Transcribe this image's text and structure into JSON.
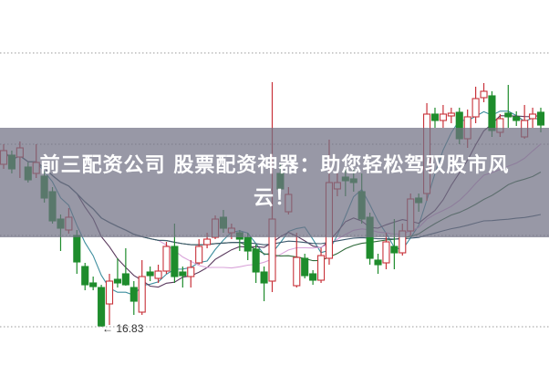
{
  "chart_data": {
    "type": "candlestick",
    "title": "",
    "min_label": "16.83",
    "grid": true,
    "ylim": [
      16.83,
      19.83
    ],
    "colors": {
      "up": "#c8323a",
      "down": "#1e8c2c",
      "ma": [
        "#3f8f9f",
        "#5a3a5e",
        "#d9a3d9",
        "#2f6a3a",
        "#3f5a6e"
      ]
    },
    "moving_averages": [
      5,
      10,
      20,
      30,
      60
    ],
    "candles_ohlc": [
      [
        18.61,
        18.83,
        18.56,
        18.76
      ],
      [
        18.71,
        18.76,
        18.51,
        18.56
      ],
      [
        18.69,
        18.86,
        18.46,
        18.79
      ],
      [
        18.58,
        18.63,
        18.41,
        18.44
      ],
      [
        18.51,
        18.83,
        18.46,
        18.63
      ],
      [
        18.48,
        18.53,
        18.19,
        18.24
      ],
      [
        18.31,
        18.36,
        17.96,
        17.99
      ],
      [
        18.01,
        18.06,
        17.66,
        17.91
      ],
      [
        17.89,
        18.13,
        17.85,
        18.03
      ],
      [
        17.83,
        17.89,
        17.41,
        17.54
      ],
      [
        17.49,
        17.53,
        17.23,
        17.29
      ],
      [
        17.31,
        17.38,
        17.23,
        17.27
      ],
      [
        17.26,
        17.29,
        16.83,
        16.84
      ],
      [
        17.08,
        17.41,
        16.85,
        17.33
      ],
      [
        17.35,
        17.58,
        17.26,
        17.31
      ],
      [
        17.41,
        17.69,
        17.28,
        17.29
      ],
      [
        17.26,
        17.33,
        16.96,
        17.11
      ],
      [
        16.99,
        17.56,
        16.96,
        17.38
      ],
      [
        17.43,
        17.49,
        17.33,
        17.39
      ],
      [
        17.36,
        17.51,
        17.31,
        17.44
      ],
      [
        17.44,
        17.76,
        17.41,
        17.71
      ],
      [
        17.71,
        17.96,
        17.31,
        17.38
      ],
      [
        17.43,
        17.49,
        17.26,
        17.39
      ],
      [
        17.38,
        17.56,
        17.26,
        17.48
      ],
      [
        17.53,
        17.79,
        17.51,
        17.71
      ],
      [
        17.73,
        17.86,
        17.69,
        17.79
      ],
      [
        17.81,
        18.05,
        17.79,
        18.01
      ],
      [
        18.03,
        18.11,
        17.86,
        17.91
      ],
      [
        17.86,
        17.96,
        17.79,
        17.91
      ],
      [
        17.86,
        17.89,
        17.66,
        17.79
      ],
      [
        17.81,
        17.86,
        17.56,
        17.66
      ],
      [
        17.68,
        17.73,
        17.31,
        17.43
      ],
      [
        17.43,
        17.49,
        17.11,
        17.31
      ],
      [
        17.33,
        19.51,
        17.21,
        18.01
      ],
      [
        18.51,
        18.61,
        18.26,
        18.34
      ],
      [
        18.09,
        18.36,
        18.06,
        18.28
      ],
      [
        17.28,
        17.86,
        17.26,
        17.59
      ],
      [
        17.58,
        17.63,
        17.36,
        17.39
      ],
      [
        17.41,
        17.45,
        17.29,
        17.34
      ],
      [
        17.34,
        17.69,
        17.31,
        17.61
      ],
      [
        17.58,
        18.88,
        17.51,
        18.41
      ],
      [
        18.34,
        18.51,
        18.26,
        18.41
      ],
      [
        18.47,
        18.56,
        18.26,
        18.43
      ],
      [
        18.45,
        18.56,
        18.31,
        18.41
      ],
      [
        18.31,
        18.51,
        17.96,
        18.01
      ],
      [
        18.03,
        18.08,
        17.51,
        17.58
      ],
      [
        17.56,
        17.63,
        17.41,
        17.51
      ],
      [
        17.53,
        17.86,
        17.46,
        17.76
      ],
      [
        17.71,
        18.01,
        17.46,
        17.64
      ],
      [
        17.64,
        17.96,
        17.61,
        17.88
      ],
      [
        17.88,
        18.29,
        17.83,
        18.23
      ],
      [
        18.24,
        18.29,
        18.09,
        18.19
      ],
      [
        18.29,
        19.28,
        18.21,
        19.16
      ],
      [
        19.16,
        19.23,
        19.01,
        19.09
      ],
      [
        19.09,
        19.26,
        19.01,
        19.16
      ],
      [
        19.14,
        19.23,
        19.06,
        19.17
      ],
      [
        19.18,
        19.23,
        18.83,
        18.89
      ],
      [
        18.89,
        19.21,
        18.79,
        19.13
      ],
      [
        19.13,
        19.46,
        19.06,
        19.33
      ],
      [
        19.34,
        19.5,
        19.29,
        19.41
      ],
      [
        19.36,
        19.41,
        18.91,
        18.98
      ],
      [
        18.96,
        19.16,
        18.91,
        19.11
      ],
      [
        19.17,
        19.48,
        19.01,
        19.13
      ],
      [
        19.13,
        19.19,
        19.03,
        19.09
      ],
      [
        18.91,
        19.26,
        18.89,
        19.09
      ],
      [
        19.11,
        19.23,
        19.01,
        19.16
      ],
      [
        19.18,
        19.23,
        18.96,
        19.04
      ]
    ]
  },
  "overlay": {
    "line1": "前三配资公司 股票配资神器：助您轻松驾驭股市风",
    "line2": "云！"
  }
}
